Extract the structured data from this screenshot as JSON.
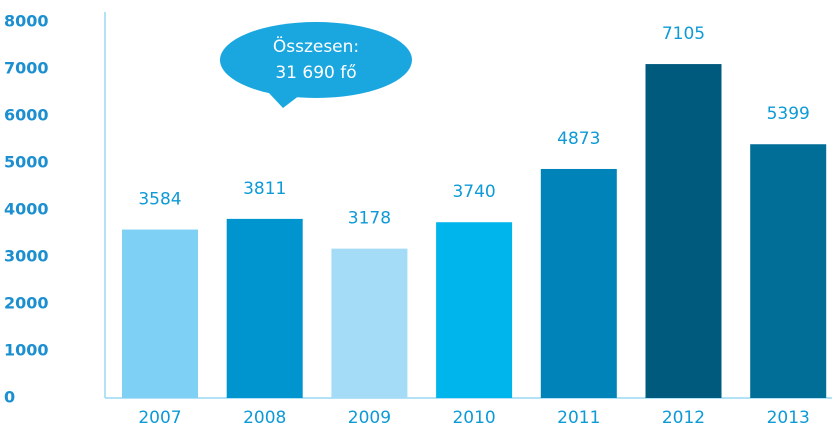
{
  "chart_data": {
    "type": "bar",
    "annotation": [
      "Összesen:",
      "31 690 fő"
    ],
    "categories": [
      "2007",
      "2008",
      "2009",
      "2010",
      "2011",
      "2012",
      "2013"
    ],
    "values": [
      3584,
      3811,
      3178,
      3740,
      4873,
      7105,
      5399
    ],
    "colors": [
      "#7fd0f5",
      "#0095cf",
      "#a4dcf7",
      "#00b5ec",
      "#0083b8",
      "#005a7d",
      "#006e96"
    ],
    "ylim": [
      0,
      8000
    ],
    "yticks": [
      0,
      1000,
      2000,
      3000,
      4000,
      5000,
      6000,
      7000,
      8000
    ],
    "grid": false
  }
}
